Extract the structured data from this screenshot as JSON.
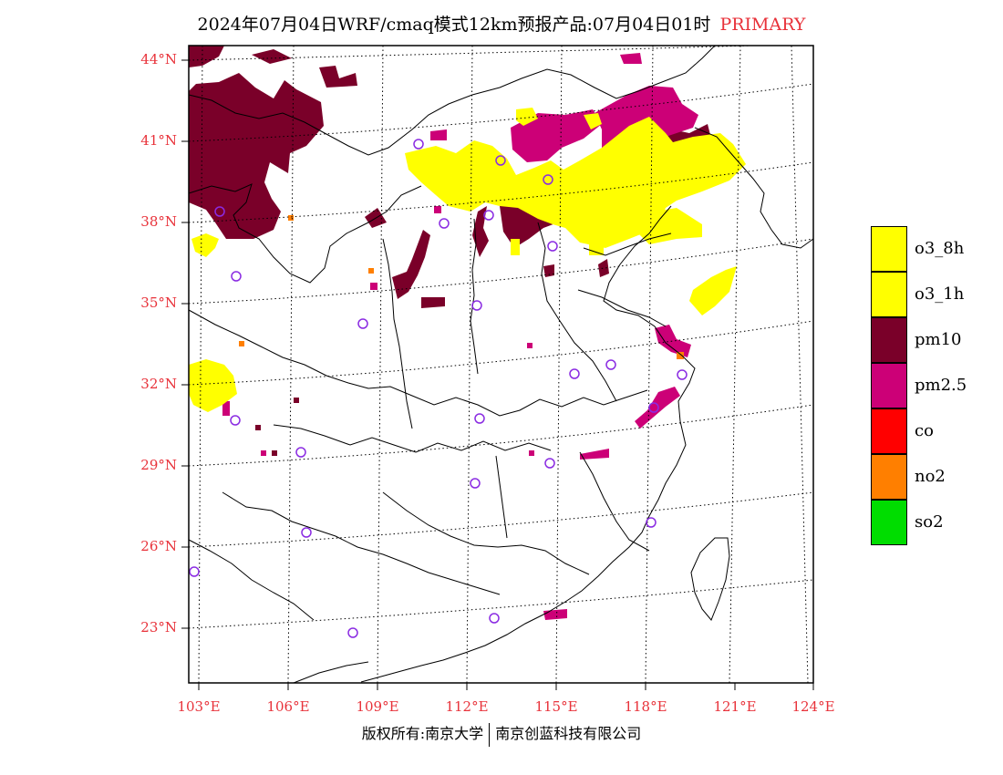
{
  "title": {
    "main": "2024年07月04日WRF/cmaq模式12km预报产品:07月04日01时",
    "tag": "PRIMARY"
  },
  "axes": {
    "lat_labels": [
      "44°N",
      "41°N",
      "38°N",
      "35°N",
      "32°N",
      "29°N",
      "26°N",
      "23°N"
    ],
    "lon_labels": [
      "103°E",
      "106°E",
      "109°E",
      "112°E",
      "115°E",
      "118°E",
      "121°E",
      "124°E"
    ]
  },
  "legend": [
    {
      "label": "o3_8h",
      "color": "#ffff00"
    },
    {
      "label": "o3_1h",
      "color": "#ffff00"
    },
    {
      "label": "pm10",
      "color": "#7a0029"
    },
    {
      "label": "pm2.5",
      "color": "#cc0077"
    },
    {
      "label": "co",
      "color": "#ff0000"
    },
    {
      "label": "no2",
      "color": "#ff7f00"
    },
    {
      "label": "so2",
      "color": "#00dd00"
    }
  ],
  "colors": {
    "axis_label": "#e8323a",
    "station_marker": "#8a2be2"
  },
  "copyright": {
    "left": "版权所有:南京大学",
    "right": "南京创蓝科技有限公司"
  }
}
